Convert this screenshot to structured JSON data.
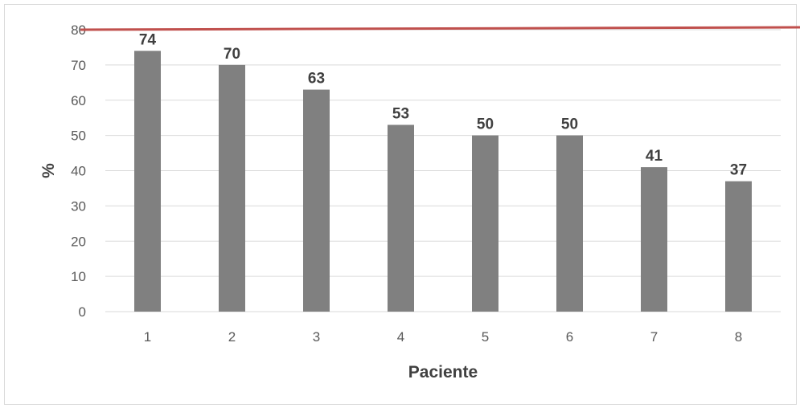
{
  "chart_data": {
    "type": "bar",
    "categories": [
      "1",
      "2",
      "3",
      "4",
      "5",
      "6",
      "7",
      "8"
    ],
    "values": [
      74,
      70,
      63,
      53,
      50,
      50,
      41,
      37
    ],
    "xlabel": "Paciente",
    "ylabel": "%",
    "ylim": [
      0,
      80
    ],
    "yticks": [
      "0",
      "10",
      "20",
      "30",
      "40",
      "50",
      "60",
      "70",
      "80"
    ],
    "reference_line": 80,
    "grid": true,
    "data_labels": true,
    "colors": {
      "bar": "#808080",
      "reference_line": "#c0504d",
      "grid": "#d9d9d9",
      "text": "#404040"
    }
  }
}
